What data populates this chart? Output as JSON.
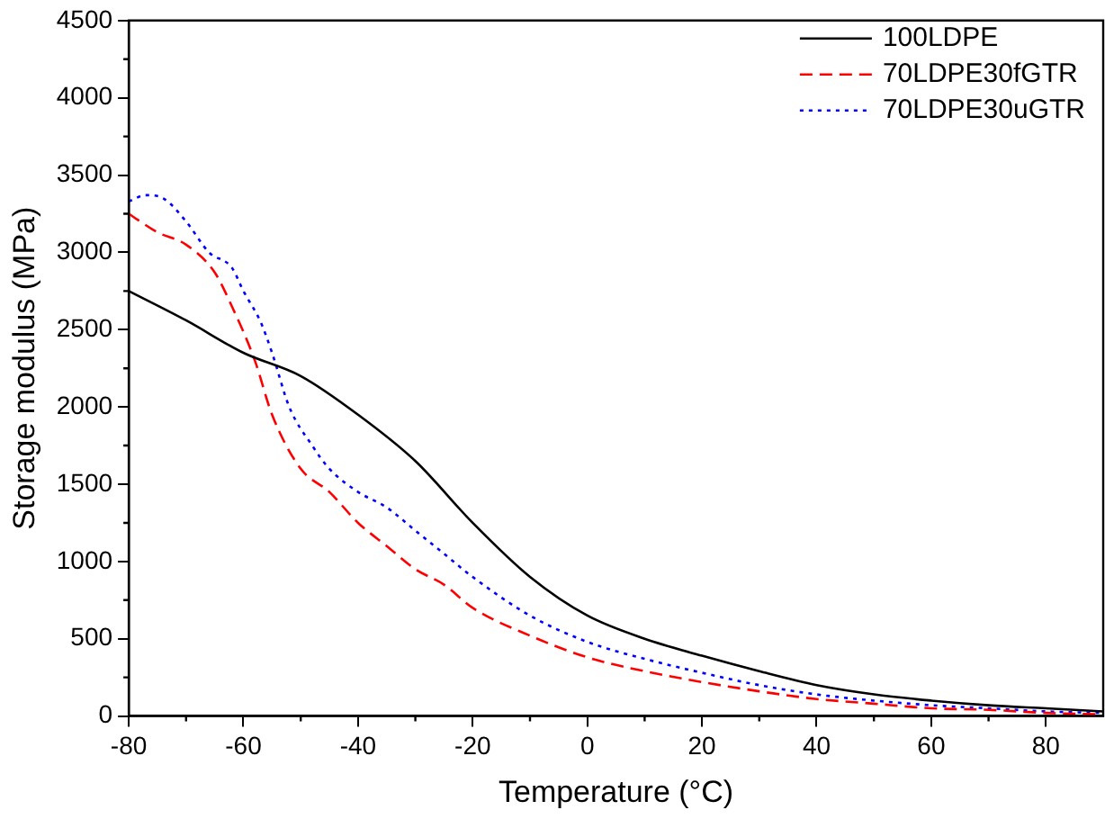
{
  "chart_data": {
    "type": "line",
    "xlabel": "Temperature (°C)",
    "ylabel": "Storage modulus (MPa)",
    "xlim": [
      -80,
      90
    ],
    "xticks": [
      -80,
      -60,
      -40,
      -20,
      0,
      20,
      40,
      60,
      80
    ],
    "ylim": [
      0,
      4500
    ],
    "yticks": [
      0,
      500,
      1000,
      1500,
      2000,
      2500,
      3000,
      3500,
      4000,
      4500
    ],
    "grid": false,
    "legend": "top right",
    "marker": "none",
    "series": [
      {
        "name": "100LDPE",
        "color": "#000000",
        "line_style": "solid",
        "x": [
          -80,
          -70,
          -60,
          -50,
          -40,
          -30,
          -20,
          -10,
          0,
          10,
          20,
          30,
          40,
          50,
          60,
          70,
          80,
          90
        ],
        "values": [
          2750,
          2560,
          2350,
          2200,
          1950,
          1650,
          1250,
          900,
          650,
          500,
          390,
          290,
          200,
          140,
          100,
          70,
          50,
          30
        ]
      },
      {
        "name": "70LDPE30fGTR",
        "color": "#ff0000",
        "line_style": "dashed",
        "x": [
          -80,
          -75,
          -70,
          -65,
          -62,
          -58,
          -55,
          -50,
          -45,
          -40,
          -35,
          -30,
          -25,
          -20,
          -10,
          0,
          10,
          20,
          30,
          40,
          50,
          60,
          70,
          80,
          90
        ],
        "values": [
          3250,
          3130,
          3050,
          2870,
          2650,
          2300,
          1950,
          1600,
          1450,
          1250,
          1100,
          950,
          850,
          700,
          520,
          380,
          290,
          220,
          160,
          110,
          80,
          50,
          40,
          20,
          10
        ]
      },
      {
        "name": "70LDPE30uGTR",
        "color": "#0000ff",
        "line_style": "dotted",
        "x": [
          -80,
          -77,
          -74,
          -70,
          -66,
          -62,
          -60,
          -57,
          -55,
          -52,
          -48,
          -45,
          -40,
          -35,
          -30,
          -25,
          -20,
          -10,
          0,
          10,
          20,
          30,
          40,
          50,
          60,
          70,
          80,
          90
        ],
        "values": [
          3330,
          3370,
          3350,
          3200,
          3000,
          2900,
          2750,
          2550,
          2350,
          2000,
          1750,
          1600,
          1450,
          1350,
          1200,
          1050,
          900,
          650,
          480,
          370,
          280,
          200,
          140,
          100,
          70,
          50,
          30,
          20
        ]
      }
    ]
  }
}
